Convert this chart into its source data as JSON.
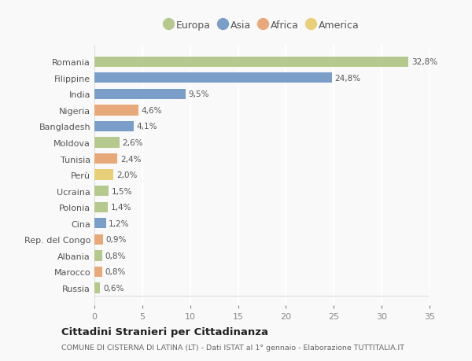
{
  "categories": [
    "Romania",
    "Filippine",
    "India",
    "Nigeria",
    "Bangladesh",
    "Moldova",
    "Tunisia",
    "Perù",
    "Ucraina",
    "Polonia",
    "Cina",
    "Rep. del Congo",
    "Albania",
    "Marocco",
    "Russia"
  ],
  "values": [
    32.8,
    24.8,
    9.5,
    4.6,
    4.1,
    2.6,
    2.4,
    2.0,
    1.5,
    1.4,
    1.2,
    0.9,
    0.8,
    0.8,
    0.6
  ],
  "labels": [
    "32,8%",
    "24,8%",
    "9,5%",
    "4,6%",
    "4,1%",
    "2,6%",
    "2,4%",
    "2,0%",
    "1,5%",
    "1,4%",
    "1,2%",
    "0,9%",
    "0,8%",
    "0,8%",
    "0,6%"
  ],
  "continents": [
    "Europa",
    "Asia",
    "Asia",
    "Africa",
    "Asia",
    "Europa",
    "Africa",
    "America",
    "Europa",
    "Europa",
    "Asia",
    "Africa",
    "Europa",
    "Africa",
    "Europa"
  ],
  "colors": {
    "Europa": "#b5c98e",
    "Asia": "#7b9ec9",
    "Africa": "#e8a97a",
    "America": "#e8d07a"
  },
  "legend_order": [
    "Europa",
    "Asia",
    "Africa",
    "America"
  ],
  "title": "Cittadini Stranieri per Cittadinanza",
  "subtitle": "COMUNE DI CISTERNA DI LATINA (LT) - Dati ISTAT al 1° gennaio - Elaborazione TUTTITALIA.IT",
  "xlim": [
    0,
    35
  ],
  "xticks": [
    0,
    5,
    10,
    15,
    20,
    25,
    30,
    35
  ],
  "background_color": "#f9f9f9",
  "grid_color": "#ffffff",
  "bar_height": 0.65
}
